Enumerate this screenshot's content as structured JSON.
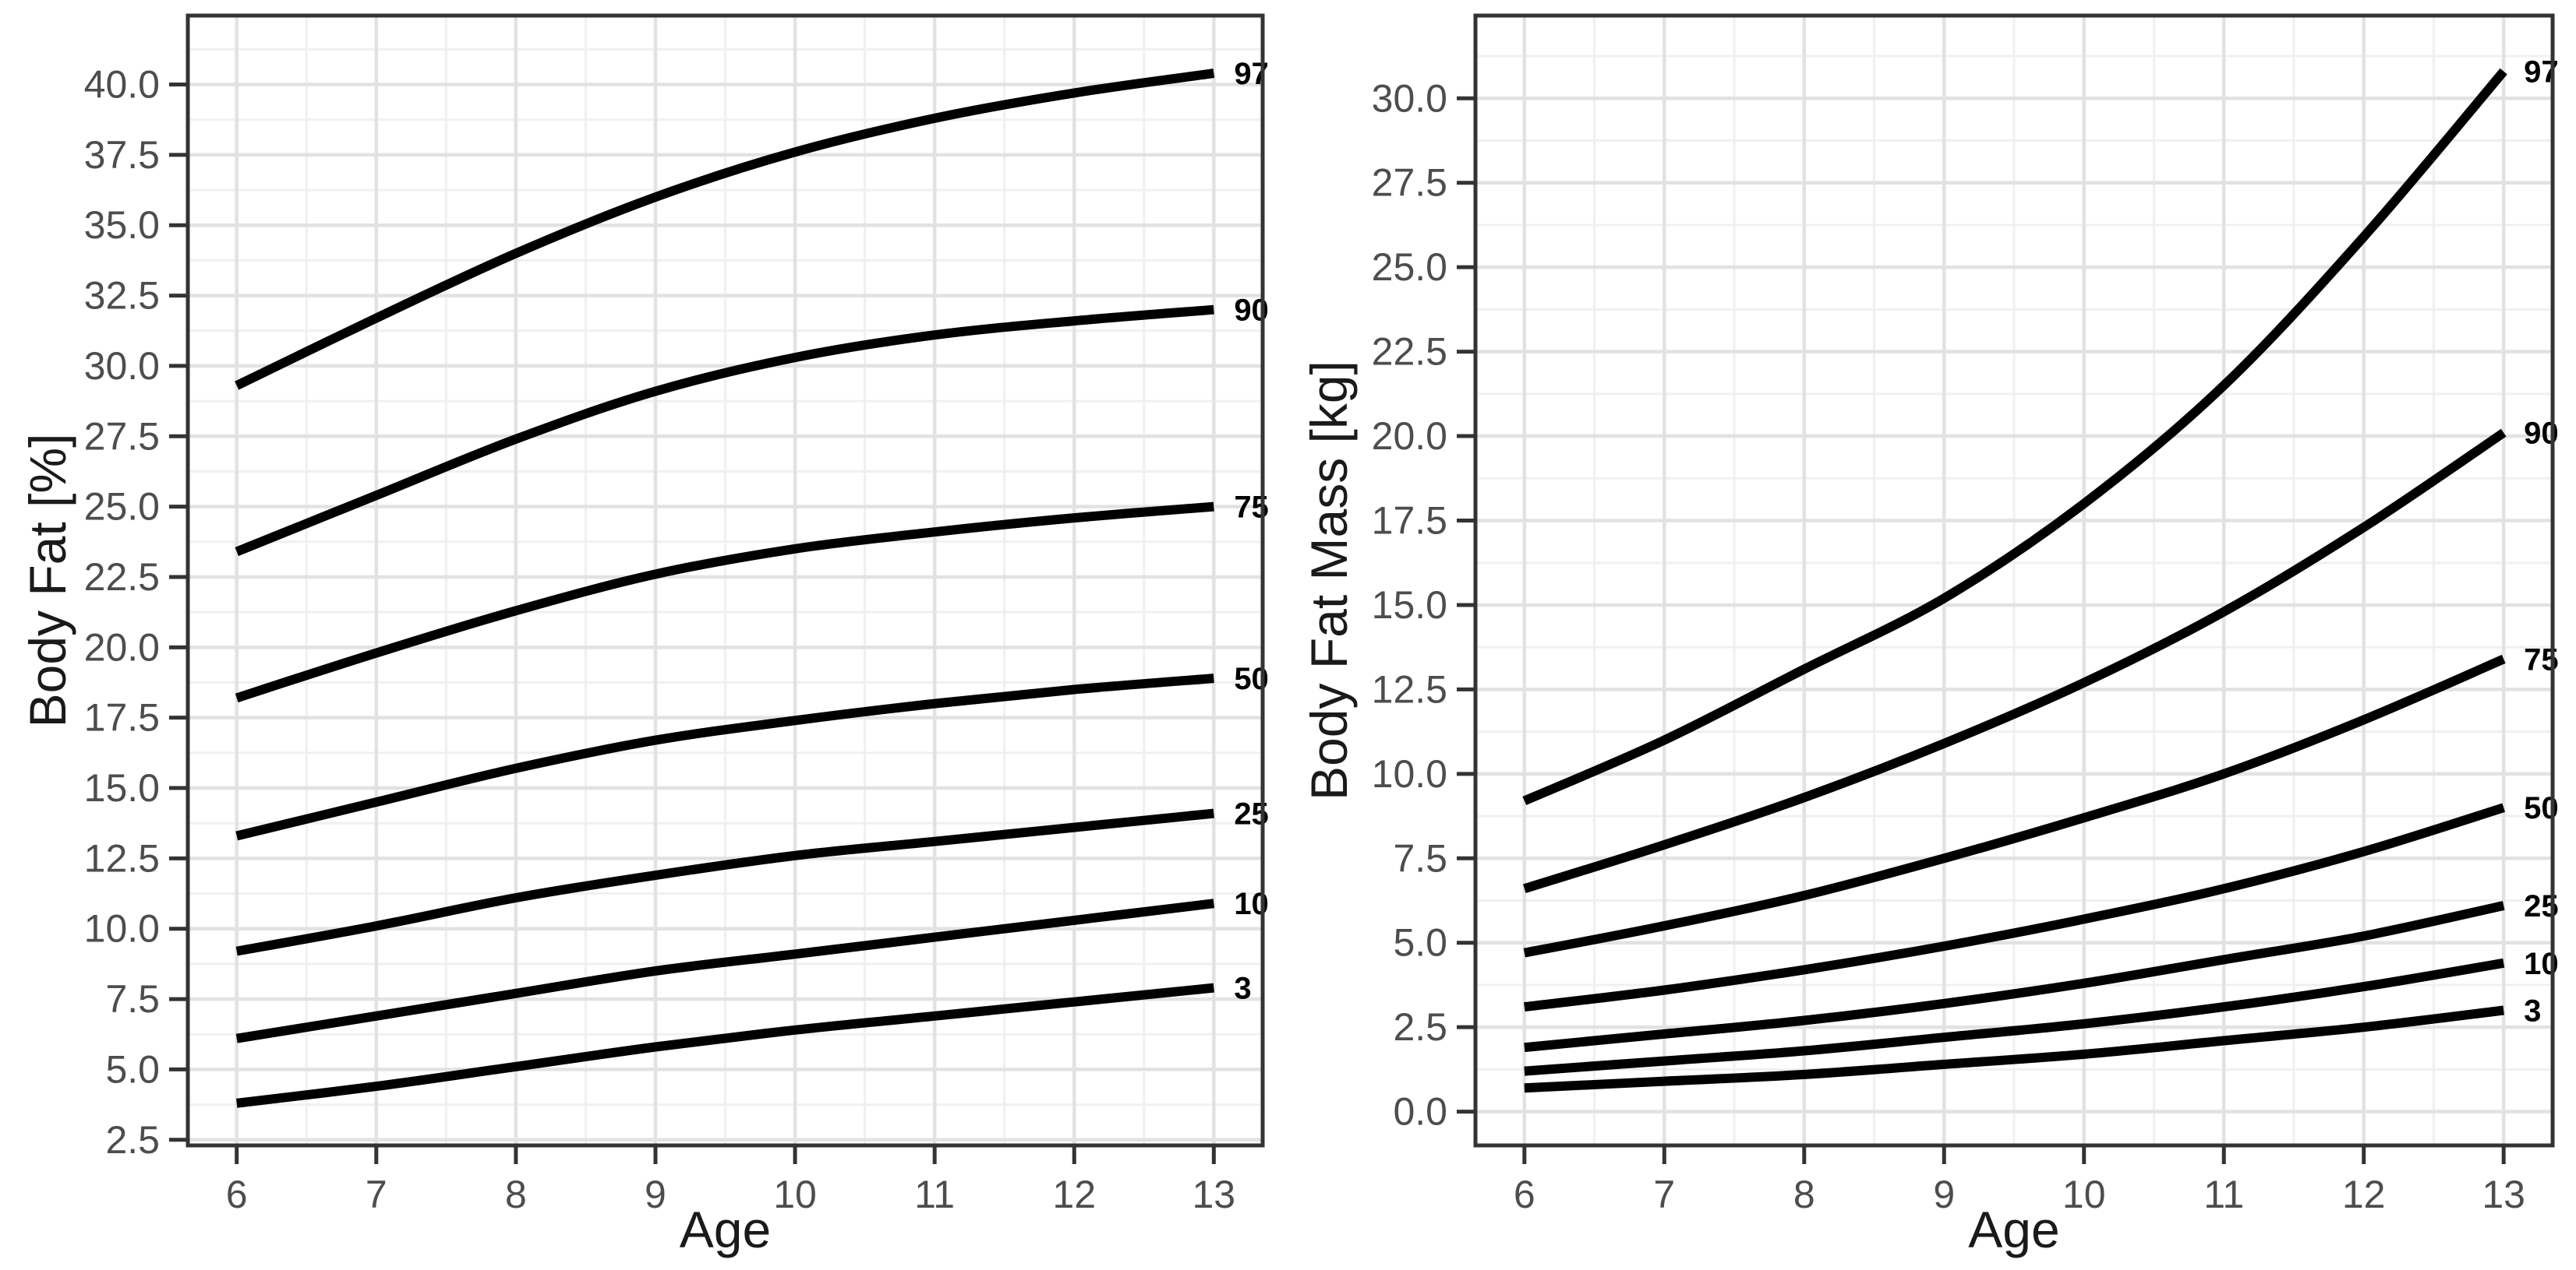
{
  "figure": {
    "background": "#ffffff"
  },
  "colors": {
    "curve": "#000000",
    "tick_text": "#4d4d4d",
    "axis_title": "#1a1a1a",
    "grid_major": "#e2e2e2",
    "grid_minor": "#f0f0f0",
    "panel_border": "#333333",
    "tick_mark": "#333333",
    "percentile_label": "#000000"
  },
  "chart_data": [
    {
      "type": "line",
      "panel": "left",
      "title": "",
      "xlabel": "Age",
      "ylabel": "Body Fat [%]",
      "x": [
        6,
        7,
        8,
        9,
        10,
        11,
        12,
        13
      ],
      "xlim": [
        5.65,
        13.35
      ],
      "ylim": [
        2.3,
        42.45
      ],
      "x_tick_labels": [
        "6",
        "7",
        "8",
        "9",
        "10",
        "11",
        "12",
        "13"
      ],
      "y_ticks": [
        2.5,
        5,
        7.5,
        10,
        12.5,
        15,
        17.5,
        20,
        22.5,
        25,
        27.5,
        30,
        32.5,
        35,
        37.5,
        40
      ],
      "y_tick_labels": [
        "2.5",
        "5.0",
        "7.5",
        "10.0",
        "12.5",
        "15.0",
        "17.5",
        "20.0",
        "22.5",
        "25.0",
        "27.5",
        "30.0",
        "32.5",
        "35.0",
        "37.5",
        "40.0"
      ],
      "grid": true,
      "legend_position": "curve-end-labels",
      "series": [
        {
          "name": "97",
          "values": [
            29.3,
            31.7,
            34.0,
            36.0,
            37.6,
            38.8,
            39.7,
            40.4
          ]
        },
        {
          "name": "90",
          "values": [
            23.4,
            25.4,
            27.4,
            29.1,
            30.3,
            31.1,
            31.6,
            32.0
          ]
        },
        {
          "name": "75",
          "values": [
            18.2,
            19.8,
            21.3,
            22.6,
            23.5,
            24.1,
            24.6,
            25.0
          ]
        },
        {
          "name": "50",
          "values": [
            13.3,
            14.5,
            15.7,
            16.7,
            17.4,
            18.0,
            18.5,
            18.9
          ]
        },
        {
          "name": "25",
          "values": [
            9.2,
            10.1,
            11.1,
            11.9,
            12.6,
            13.1,
            13.6,
            14.1
          ]
        },
        {
          "name": "10",
          "values": [
            6.1,
            6.9,
            7.7,
            8.5,
            9.1,
            9.7,
            10.3,
            10.9
          ]
        },
        {
          "name": "3",
          "values": [
            3.8,
            4.4,
            5.1,
            5.8,
            6.4,
            6.9,
            7.4,
            7.9
          ]
        }
      ]
    },
    {
      "type": "line",
      "panel": "right",
      "title": "",
      "xlabel": "Age",
      "ylabel": "Body Fat Mass [kg]",
      "x": [
        6,
        7,
        8,
        9,
        10,
        11,
        12,
        13
      ],
      "xlim": [
        5.65,
        13.35
      ],
      "ylim": [
        -1.0,
        32.45
      ],
      "x_tick_labels": [
        "6",
        "7",
        "8",
        "9",
        "10",
        "11",
        "12",
        "13"
      ],
      "y_ticks": [
        0,
        2.5,
        5,
        7.5,
        10,
        12.5,
        15,
        17.5,
        20,
        22.5,
        25,
        27.5,
        30
      ],
      "y_tick_labels": [
        "0.0",
        "2.5",
        "5.0",
        "7.5",
        "10.0",
        "12.5",
        "15.0",
        "17.5",
        "20.0",
        "22.5",
        "25.0",
        "27.5",
        "30.0"
      ],
      "grid": true,
      "legend_position": "curve-end-labels",
      "series": [
        {
          "name": "97",
          "values": [
            9.2,
            11.0,
            13.1,
            15.2,
            18.0,
            21.5,
            25.9,
            30.8
          ]
        },
        {
          "name": "90",
          "values": [
            6.6,
            7.9,
            9.3,
            10.9,
            12.7,
            14.8,
            17.3,
            20.1
          ]
        },
        {
          "name": "75",
          "values": [
            4.7,
            5.5,
            6.4,
            7.5,
            8.7,
            10.0,
            11.6,
            13.4
          ]
        },
        {
          "name": "50",
          "values": [
            3.1,
            3.6,
            4.2,
            4.9,
            5.7,
            6.6,
            7.7,
            9.0
          ]
        },
        {
          "name": "25",
          "values": [
            1.9,
            2.3,
            2.7,
            3.2,
            3.8,
            4.5,
            5.2,
            6.1
          ]
        },
        {
          "name": "10",
          "values": [
            1.2,
            1.5,
            1.8,
            2.2,
            2.6,
            3.1,
            3.7,
            4.4
          ]
        },
        {
          "name": "3",
          "values": [
            0.7,
            0.9,
            1.1,
            1.4,
            1.7,
            2.1,
            2.5,
            3.0
          ]
        }
      ]
    }
  ]
}
